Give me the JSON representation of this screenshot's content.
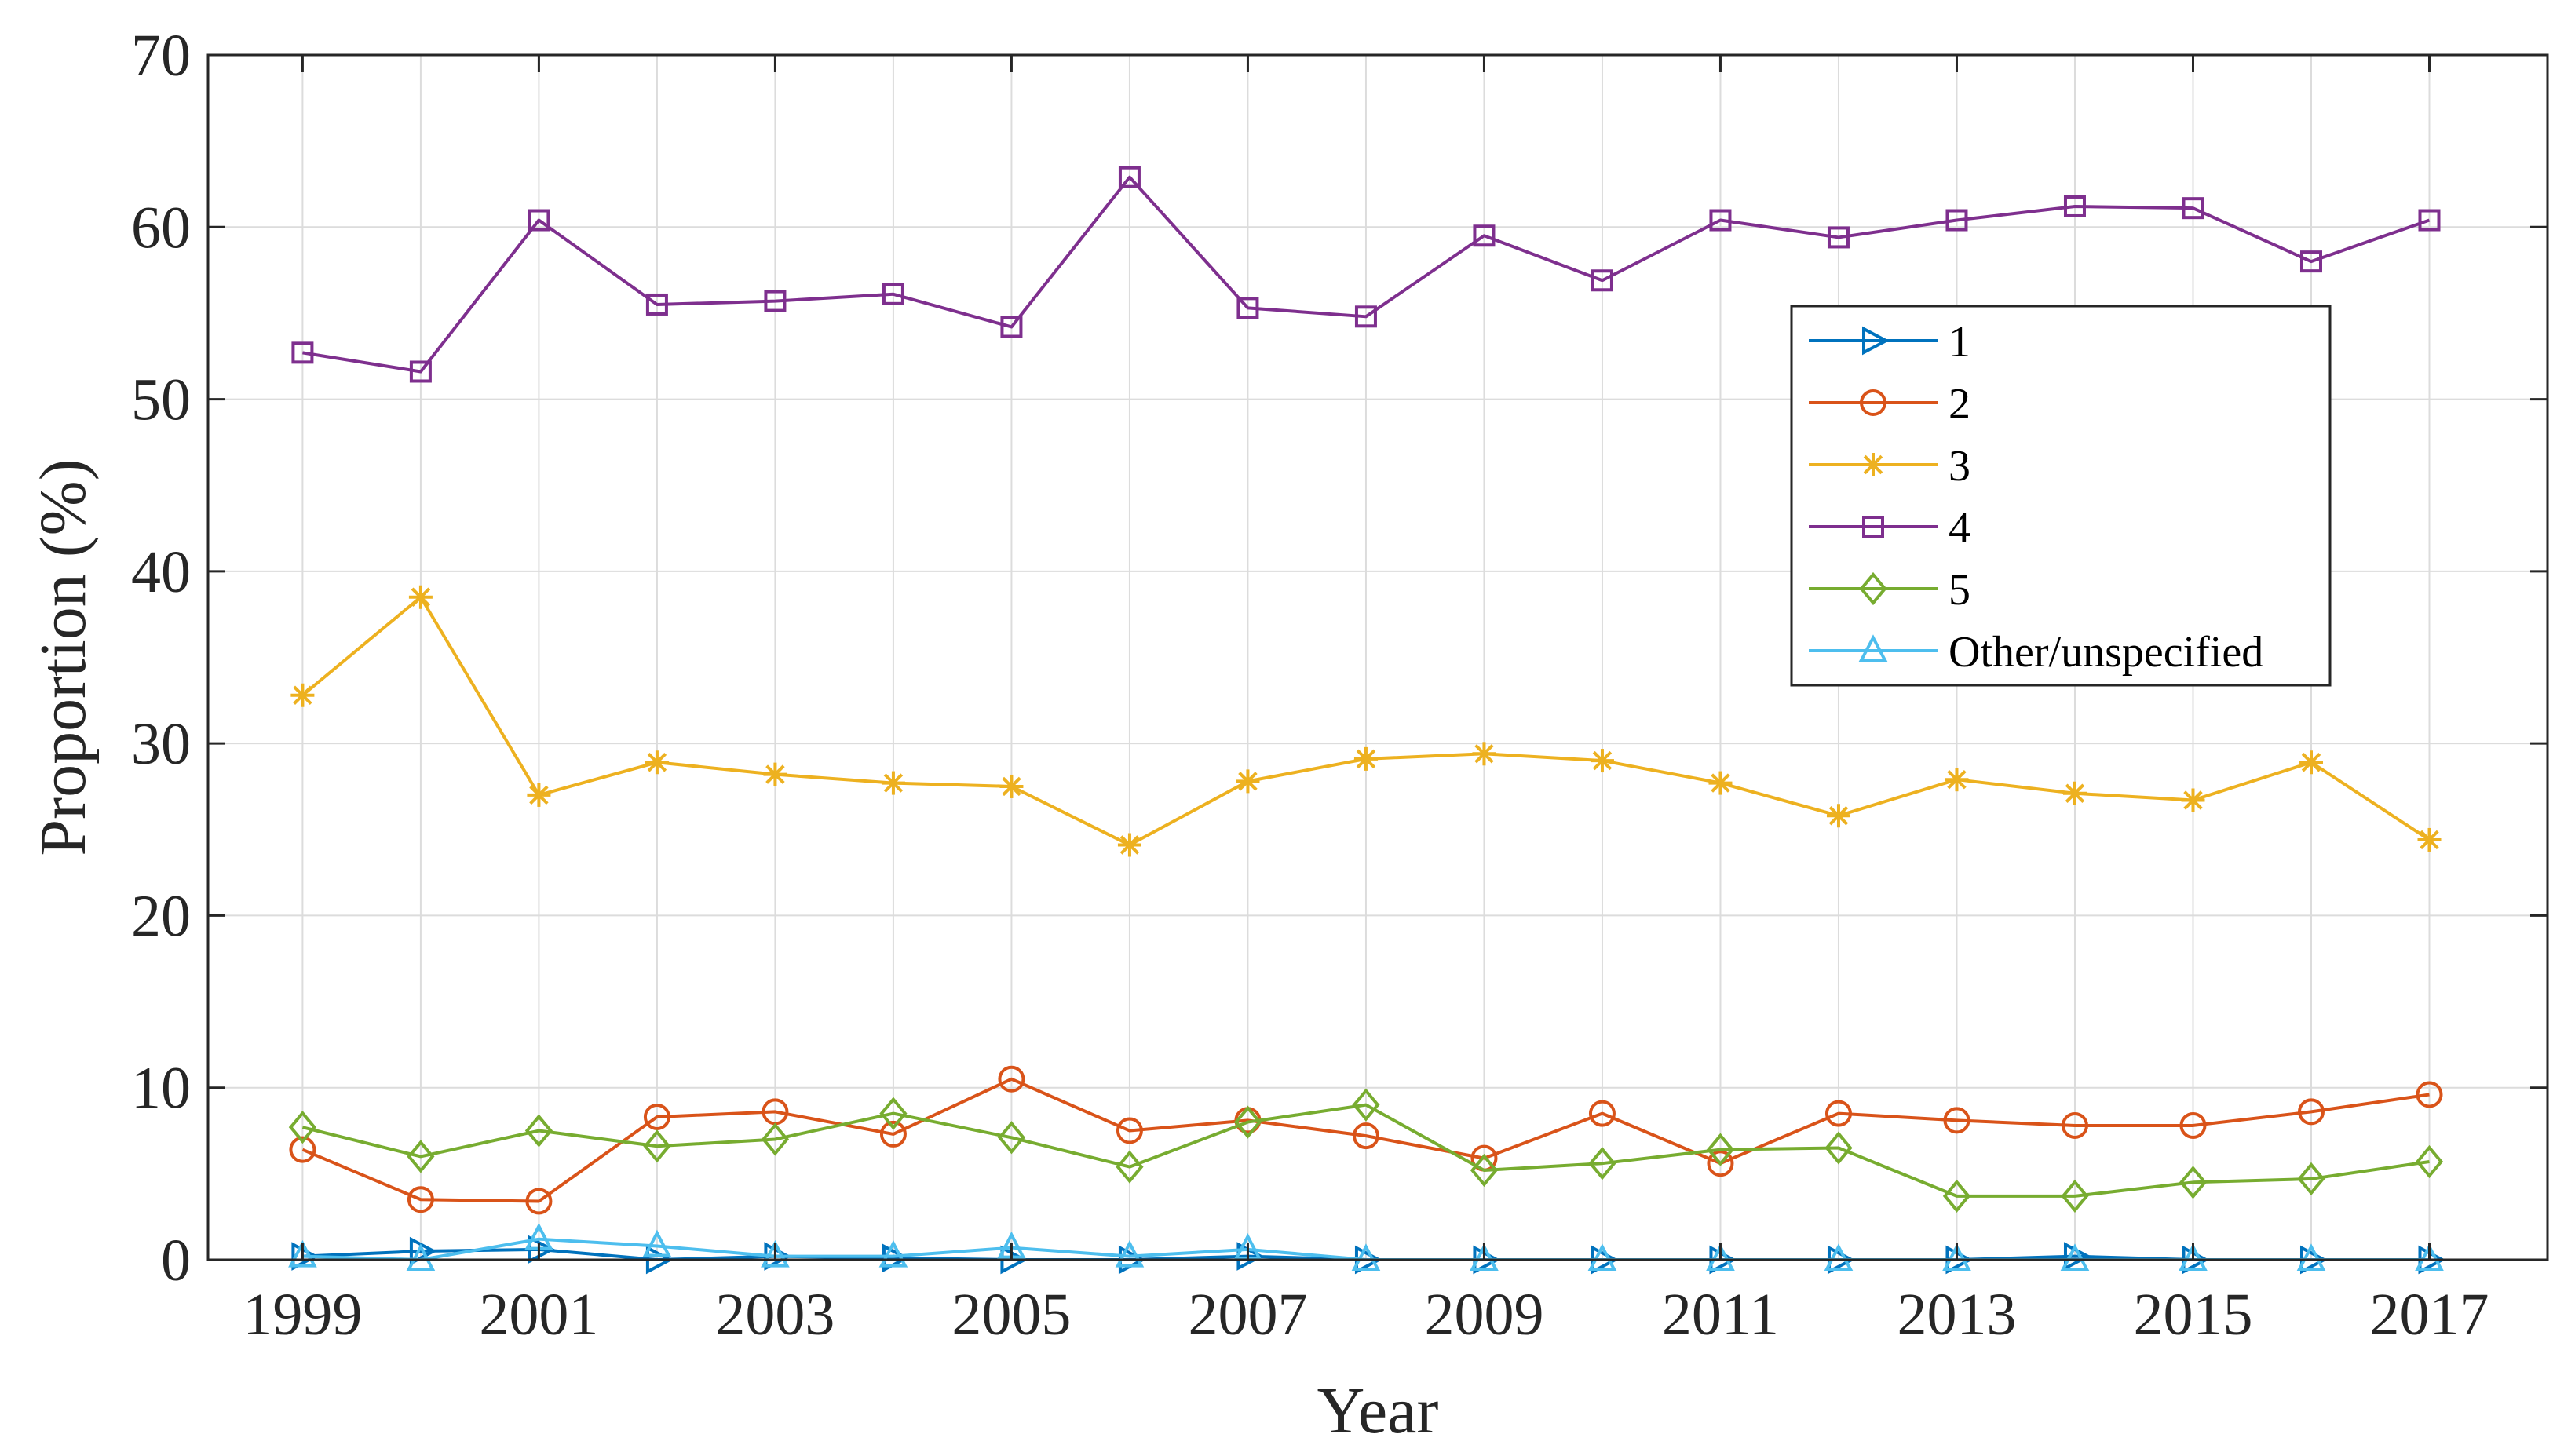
{
  "chart_data": {
    "type": "line",
    "title": "",
    "xlabel": "Year",
    "ylabel": "Proportion (%)",
    "x": [
      1999,
      2000,
      2001,
      2002,
      2003,
      2004,
      2005,
      2006,
      2007,
      2008,
      2009,
      2010,
      2011,
      2012,
      2013,
      2014,
      2015,
      2016,
      2017
    ],
    "xlim": [
      1998.2,
      2018
    ],
    "ylim": [
      0,
      70
    ],
    "xticks": [
      1999,
      2001,
      2003,
      2005,
      2007,
      2009,
      2011,
      2013,
      2015,
      2017
    ],
    "xtick_labels": [
      "1999",
      "2001",
      "2003",
      "2005",
      "2007",
      "2009",
      "2011",
      "2013",
      "2015",
      "2017"
    ],
    "yticks": [
      0,
      10,
      20,
      30,
      40,
      50,
      60,
      70
    ],
    "ytick_labels": [
      "0",
      "10",
      "20",
      "30",
      "40",
      "50",
      "60",
      "70"
    ],
    "grid": true,
    "legend_position": "right",
    "series": [
      {
        "name": "1",
        "color": "#0072BD",
        "marker": "triangle-right",
        "values": [
          0.2,
          0.5,
          0.6,
          0.0,
          0.2,
          0.1,
          0.0,
          0.0,
          0.2,
          0.0,
          0.0,
          0.0,
          0.0,
          0.0,
          0.0,
          0.2,
          0.0,
          0.0,
          0.0
        ]
      },
      {
        "name": "2",
        "color": "#D95319",
        "marker": "circle",
        "values": [
          6.4,
          3.5,
          3.4,
          8.3,
          8.6,
          7.3,
          10.5,
          7.5,
          8.1,
          7.2,
          5.9,
          8.5,
          5.6,
          8.5,
          8.1,
          7.8,
          7.8,
          8.6,
          9.6
        ]
      },
      {
        "name": "3",
        "color": "#EDB120",
        "marker": "asterisk",
        "values": [
          32.8,
          38.5,
          27.0,
          28.9,
          28.2,
          27.7,
          27.5,
          24.1,
          27.8,
          29.1,
          29.4,
          29.0,
          27.7,
          25.8,
          27.9,
          27.1,
          26.7,
          28.9,
          24.4
        ]
      },
      {
        "name": "4",
        "color": "#7E2F8E",
        "marker": "square",
        "values": [
          52.7,
          51.6,
          60.4,
          55.5,
          55.7,
          56.1,
          54.2,
          62.9,
          55.3,
          54.8,
          59.5,
          56.9,
          60.4,
          59.4,
          60.4,
          61.2,
          61.1,
          58.0,
          60.4
        ]
      },
      {
        "name": "5",
        "color": "#77AC30",
        "marker": "diamond",
        "values": [
          7.7,
          6.0,
          7.5,
          6.6,
          7.0,
          8.5,
          7.1,
          5.4,
          8.0,
          9.0,
          5.2,
          5.6,
          6.4,
          6.5,
          3.7,
          3.7,
          4.5,
          4.7,
          5.7
        ]
      },
      {
        "name": "Other/unspecified",
        "color": "#4DBEEE",
        "marker": "triangle-up",
        "values": [
          0.2,
          0.0,
          1.2,
          0.8,
          0.2,
          0.2,
          0.7,
          0.2,
          0.6,
          0.0,
          0.0,
          0.0,
          0.0,
          0.0,
          0.0,
          0.0,
          0.0,
          0.0,
          0.0
        ]
      }
    ]
  }
}
